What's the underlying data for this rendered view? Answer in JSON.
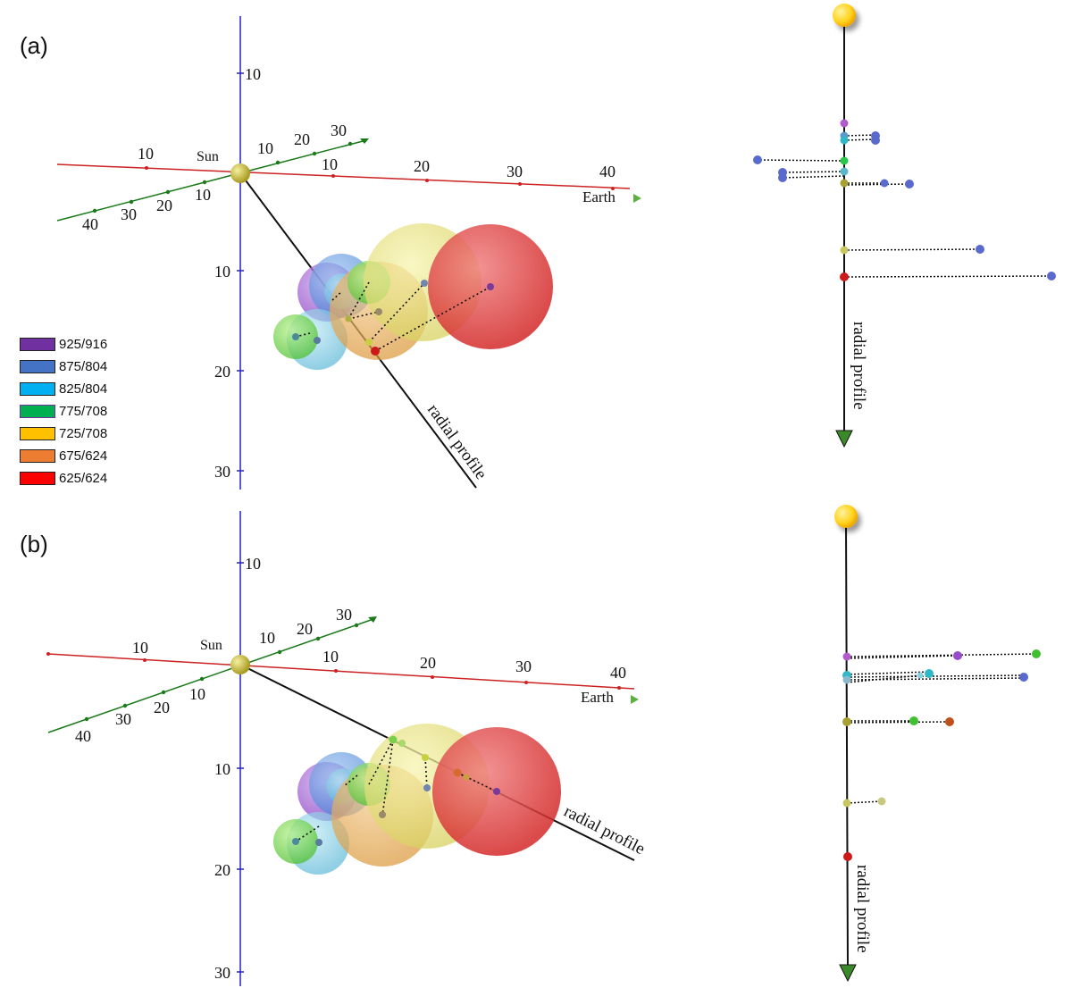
{
  "panels": [
    {
      "label": "(a)",
      "sun_label": "Sun",
      "earth_label": "Earth",
      "radial_label": "radial profile",
      "vertical_ticks": [
        "10",
        "10",
        "20",
        "30"
      ],
      "red_axis_ticks": [
        "10",
        "10",
        "20",
        "30",
        "40"
      ],
      "green_axis_ticks_near": [
        "10",
        "20",
        "30"
      ],
      "green_axis_ticks_far": [
        "10",
        "20",
        "30",
        "40"
      ]
    },
    {
      "label": "(b)",
      "sun_label": "Sun",
      "earth_label": "Earth",
      "radial_label": "radial profile",
      "vertical_ticks": [
        "10",
        "10",
        "20",
        "30"
      ],
      "red_axis_ticks": [
        "10",
        "10",
        "20",
        "30",
        "40"
      ],
      "green_axis_ticks_near": [
        "10",
        "20",
        "30"
      ],
      "green_axis_ticks_far": [
        "10",
        "20",
        "30",
        "40"
      ]
    }
  ],
  "side_views": [
    {
      "radial_label": "radial profile"
    },
    {
      "radial_label": "radial profile"
    }
  ],
  "legend": {
    "items": [
      {
        "label": "925/916",
        "color": "#7030a0"
      },
      {
        "label": "875/804",
        "color": "#4472c4"
      },
      {
        "label": "825/804",
        "color": "#00b0f0"
      },
      {
        "label": "775/708",
        "color": "#00b050"
      },
      {
        "label": "725/708",
        "color": "#ffc000"
      },
      {
        "label": "675/624",
        "color": "#ed7d31"
      },
      {
        "label": "625/624",
        "color": "#ff0000"
      }
    ]
  },
  "colors": {
    "vertical_axis": "#2222cc",
    "red_axis": "#cc2222",
    "green_axis": "#1a7a1a",
    "sun": "#d8cc40",
    "sun_side": "#ffd21a",
    "radial_line": "#111111",
    "arrow_head": "#3a8a2a"
  }
}
